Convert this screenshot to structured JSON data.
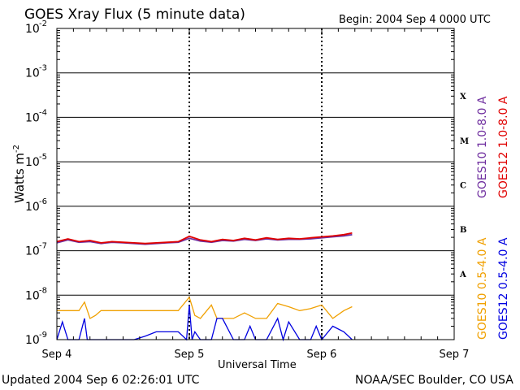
{
  "title": "GOES Xray Flux (5 minute data)",
  "begin_label": "Begin:  2004 Sep 4 0000 UTC",
  "updated": "Updated 2004 Sep  6 02:26:01 UTC",
  "credit": "NOAA/SEC Boulder, CO USA",
  "colors": {
    "goes10_long": "#7030a0",
    "goes12_long": "#e00000",
    "goes10_short": "#f0a000",
    "goes12_short": "#0000e0",
    "axis": "#000000"
  },
  "chart_data": {
    "type": "line",
    "title": "GOES Xray Flux (5 minute data)",
    "xlabel": "Universal Time",
    "ylabel": "Watts m",
    "ylabel_sup": "-2",
    "yscale": "log",
    "ylim": [
      1e-09,
      0.01
    ],
    "xlim": [
      "2004-09-04 00:00",
      "2004-09-07 00:00"
    ],
    "x_ticks": [
      "Sep 4",
      "Sep 5",
      "Sep 6",
      "Sep 7"
    ],
    "y_ticks": [
      {
        "base": "10",
        "exp": "-9"
      },
      {
        "base": "10",
        "exp": "-8"
      },
      {
        "base": "10",
        "exp": "-7"
      },
      {
        "base": "10",
        "exp": "-6"
      },
      {
        "base": "10",
        "exp": "-5"
      },
      {
        "base": "10",
        "exp": "-4"
      },
      {
        "base": "10",
        "exp": "-3"
      },
      {
        "base": "10",
        "exp": "-2"
      }
    ],
    "flare_classes": [
      "A",
      "B",
      "C",
      "M",
      "X"
    ],
    "grid": true,
    "legend": [
      "GOES10 1.0-8.0 A",
      "GOES12 1.0-8.0 A",
      "GOES10 0.5-4.0 A",
      "GOES12 0.5-4.0 A"
    ],
    "series": [
      {
        "name": "GOES10 1.0-8.0 A",
        "color": "#7030a0",
        "x_hours": [
          0,
          2,
          4,
          6,
          8,
          10,
          12,
          14,
          16,
          18,
          20,
          22,
          24,
          26,
          28,
          30,
          32,
          34,
          36,
          38,
          40,
          42,
          44,
          46,
          48,
          50,
          52,
          53.5
        ],
        "values": [
          1.5e-07,
          1.75e-07,
          1.55e-07,
          1.6e-07,
          1.45e-07,
          1.55e-07,
          1.5e-07,
          1.45e-07,
          1.4e-07,
          1.45e-07,
          1.5e-07,
          1.55e-07,
          1.9e-07,
          1.65e-07,
          1.55e-07,
          1.7e-07,
          1.65e-07,
          1.8e-07,
          1.7e-07,
          1.85e-07,
          1.75e-07,
          1.8e-07,
          1.8e-07,
          1.85e-07,
          1.95e-07,
          2.05e-07,
          2.15e-07,
          2.3e-07
        ]
      },
      {
        "name": "GOES12 1.0-8.0 A",
        "color": "#e00000",
        "x_hours": [
          0,
          2,
          4,
          6,
          8,
          10,
          12,
          14,
          16,
          18,
          20,
          22,
          24,
          26,
          28,
          30,
          32,
          34,
          36,
          38,
          40,
          42,
          44,
          46,
          48,
          50,
          52,
          53.5
        ],
        "values": [
          1.6e-07,
          1.85e-07,
          1.6e-07,
          1.7e-07,
          1.5e-07,
          1.6e-07,
          1.55e-07,
          1.5e-07,
          1.45e-07,
          1.5e-07,
          1.55e-07,
          1.6e-07,
          2.1e-07,
          1.75e-07,
          1.6e-07,
          1.8e-07,
          1.7e-07,
          1.9e-07,
          1.75e-07,
          1.95e-07,
          1.8e-07,
          1.9e-07,
          1.85e-07,
          1.95e-07,
          2.05e-07,
          2.15e-07,
          2.3e-07,
          2.5e-07
        ]
      },
      {
        "name": "GOES10 0.5-4.0 A",
        "color": "#f0a000",
        "x_hours": [
          0,
          2,
          4,
          5,
          6,
          7,
          8,
          10,
          12,
          14,
          16,
          18,
          20,
          22,
          24,
          25,
          26,
          28,
          29,
          30,
          32,
          34,
          36,
          38,
          40,
          42,
          44,
          46,
          48,
          50,
          52,
          53.5
        ],
        "values": [
          4.5e-09,
          4.5e-09,
          4.5e-09,
          7e-09,
          3e-09,
          3.5e-09,
          4.5e-09,
          4.5e-09,
          4.5e-09,
          4.5e-09,
          4.5e-09,
          4.5e-09,
          4.5e-09,
          4.5e-09,
          9e-09,
          3.5e-09,
          3e-09,
          6e-09,
          3e-09,
          3e-09,
          3e-09,
          4e-09,
          3e-09,
          3e-09,
          6.5e-09,
          5.5e-09,
          4.5e-09,
          5e-09,
          6e-09,
          3e-09,
          4.5e-09,
          5.5e-09
        ]
      },
      {
        "name": "GOES12 0.5-4.0 A",
        "color": "#0000e0",
        "x_hours": [
          0,
          1,
          2,
          3,
          4,
          5,
          5.5,
          6,
          8,
          10,
          12,
          14,
          16,
          18,
          20,
          22,
          23.5,
          24,
          24.5,
          25,
          26,
          28,
          29,
          30,
          32,
          34,
          35,
          36,
          38,
          40,
          41,
          42,
          44,
          46,
          47,
          48,
          50,
          52,
          53.5
        ],
        "values": [
          1e-09,
          2.5e-09,
          1e-09,
          1e-09,
          1e-09,
          3e-09,
          1e-09,
          1e-09,
          1e-09,
          1e-09,
          1e-09,
          1e-09,
          1.2e-09,
          1.5e-09,
          1.5e-09,
          1.5e-09,
          1e-09,
          6e-09,
          1e-09,
          1.5e-09,
          1e-09,
          1e-09,
          3e-09,
          3e-09,
          1e-09,
          1e-09,
          2e-09,
          1e-09,
          1e-09,
          3e-09,
          1e-09,
          2.5e-09,
          1e-09,
          1e-09,
          2e-09,
          1e-09,
          2e-09,
          1.5e-09,
          1e-09
        ]
      }
    ]
  }
}
